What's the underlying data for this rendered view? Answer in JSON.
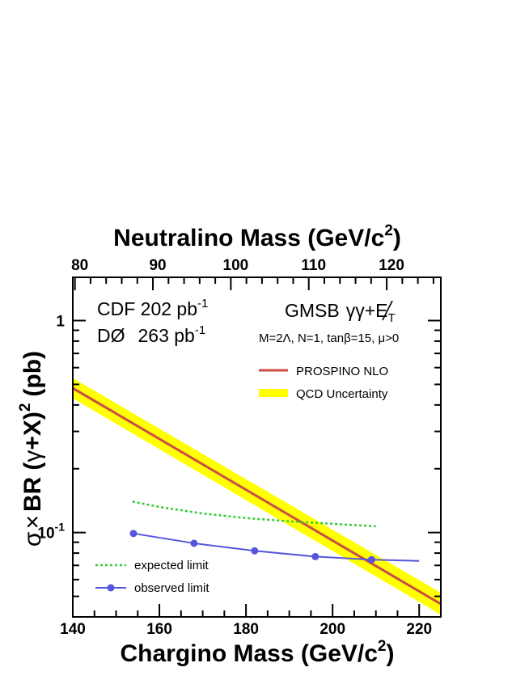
{
  "chart_data": {
    "type": "line",
    "x_axis": {
      "title": "Chargino Mass (GeV/c",
      "title_sup": "2",
      "title_close": ")",
      "range": [
        140,
        225
      ],
      "ticks": [
        140,
        160,
        180,
        200,
        220
      ],
      "tick_labels": [
        "140",
        "160",
        "180",
        "200",
        "220"
      ]
    },
    "top_axis": {
      "title": "Neutralino Mass (GeV/c",
      "title_sup": "2",
      "title_close": ")",
      "ticks": [
        80,
        90,
        100,
        110,
        120
      ],
      "tick_labels": [
        "80",
        "90",
        "100",
        "110",
        "120"
      ],
      "chargino_at_tick": [
        140.5,
        158.5,
        176.5,
        194.5,
        212.5
      ]
    },
    "y_axis": {
      "scale": "log",
      "range": [
        0.04,
        1.6
      ],
      "title_parts": {
        "sigma": "σ",
        "times": "×",
        "br": "BR",
        "paren_open": "(",
        "gamma": "γ",
        "plus": "+X)",
        "sup": "2",
        "unit": "(pb)"
      },
      "tick_labels": [
        {
          "value": 1,
          "base": "1",
          "exp": ""
        },
        {
          "value": 0.1,
          "base": "10",
          "exp": "-1"
        }
      ]
    },
    "annotations": {
      "cdf_label": "CDF 202 pb",
      "cdf_exp": "-1",
      "d0_label": "DØ",
      "d0_value": "263 pb",
      "d0_exp": "-1",
      "gmsb_prefix": "GMSB",
      "gmsb_signal": "γγ+E",
      "gmsb_sub": "T",
      "params": "M=2Λ, N=1, tanβ=15, μ>0"
    },
    "legend": [
      {
        "key": "prospino",
        "label": "PROSPINO NLO",
        "color": "#cc4c46"
      },
      {
        "key": "qcd",
        "label": "QCD Uncertainty",
        "color": "#ffff00"
      },
      {
        "key": "expected",
        "label": "expected limit",
        "color": "#33cc33"
      },
      {
        "key": "observed",
        "label": "observed limit",
        "color": "#5555dd"
      }
    ],
    "series": [
      {
        "name": "PROSPINO NLO",
        "style": "solid",
        "color": "#cc4c46",
        "x": [
          140,
          225
        ],
        "y": [
          0.48,
          0.046
        ],
        "band_low": [
          0.43,
          0.041
        ],
        "band_high": [
          0.535,
          0.052
        ]
      },
      {
        "name": "expected limit",
        "style": "dotted",
        "color": "#33cc33",
        "x": [
          153.8,
          160,
          170,
          180,
          190,
          200,
          210
        ],
        "y": [
          0.14,
          0.132,
          0.123,
          0.117,
          0.113,
          0.11,
          0.107
        ]
      },
      {
        "name": "observed limit",
        "style": "solid-markers",
        "color": "#5555dd",
        "x": [
          154,
          168,
          182,
          196,
          209,
          220
        ],
        "y": [
          0.099,
          0.089,
          0.082,
          0.077,
          0.0745,
          0.0735
        ],
        "markers": [
          true,
          true,
          true,
          true,
          true,
          false
        ]
      }
    ]
  }
}
